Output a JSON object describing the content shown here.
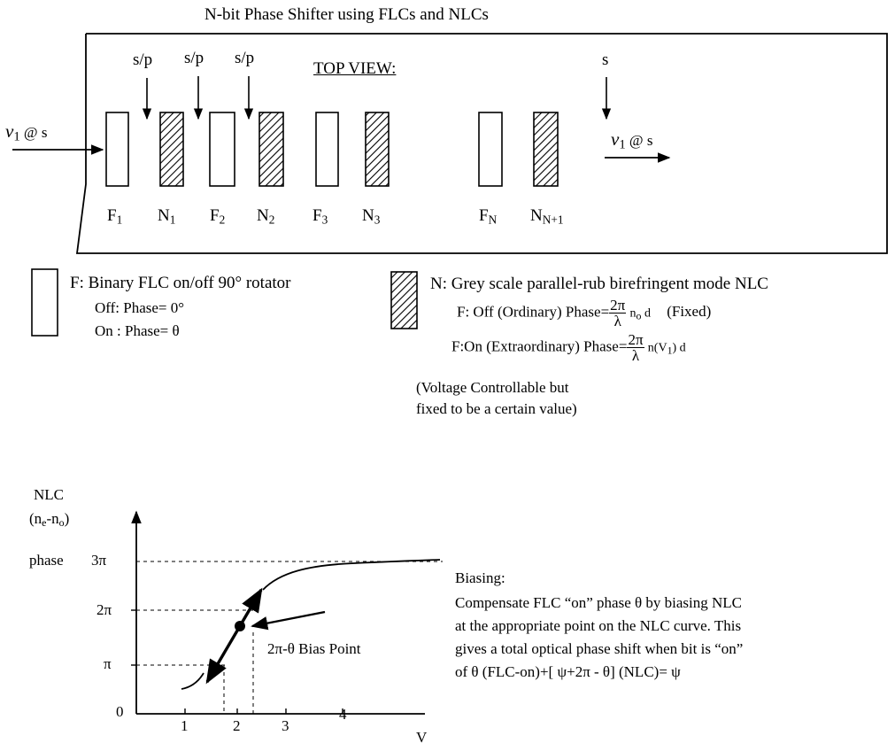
{
  "title": "N-bit Phase Shifter using FLCs and NLCs",
  "top_view": {
    "label": "TOP VIEW:",
    "input_label": {
      "v": "v",
      "sub": "1",
      "rest": " @ s"
    },
    "output_label": {
      "v": "v",
      "sub": "1",
      "rest": " @ s"
    },
    "arrow_labels": [
      "s/p",
      "s/p",
      "s/p",
      "s"
    ],
    "elements": [
      {
        "base": "F",
        "sub": "1"
      },
      {
        "base": "N",
        "sub": "1"
      },
      {
        "base": "F",
        "sub": "2"
      },
      {
        "base": "N",
        "sub": "2"
      },
      {
        "base": "F",
        "sub": "3"
      },
      {
        "base": "N",
        "sub": "3"
      },
      {
        "base": "F",
        "sub": "N"
      },
      {
        "base": "N",
        "sub": "N+1"
      }
    ]
  },
  "legend": {
    "flc": {
      "title": "F: Binary FLC on/off 90° rotator",
      "off": "Off: Phase= 0°",
      "on": "On : Phase= θ"
    },
    "nlc": {
      "title": "N: Grey scale parallel-rub birefringent mode NLC",
      "off_prefix": "F: Off (Ordinary) Phase=",
      "off_num": "2π",
      "off_den": "λ",
      "off_suffix_n": "n",
      "off_suffix_sub": "o",
      "off_suffix_rest": " d",
      "off_note": "(Fixed)",
      "on_prefix": "F:On (Extraordinary) Phase=",
      "on_num": "2π",
      "on_den": "λ",
      "on_suffix_a": "n(V",
      "on_suffix_sub": "1",
      "on_suffix_b": ") d"
    },
    "voltage_note_1": "(Voltage Controllable but",
    "voltage_note_2": "fixed to be a certain value)"
  },
  "graph": {
    "ylabel_1": "NLC",
    "ylabel_2a": "(n",
    "ylabel_2_sub_e": "e",
    "ylabel_2b": "-n",
    "ylabel_2_sub_o": "o",
    "ylabel_2c": ")",
    "ylabel_3": "phase",
    "y_ticks": [
      "3π",
      "2π",
      "π",
      "0"
    ],
    "x_ticks": [
      "1",
      "2",
      "3",
      "4"
    ],
    "xlabel": "V",
    "bias_label": "2π-θ Bias Point"
  },
  "biasing": {
    "title": "Biasing:",
    "line1": "Compensate FLC “on” phase θ by  biasing NLC",
    "line2": "at the appropriate point on the NLC curve. This",
    "line3": "gives a total optical phase shift when bit is “on”",
    "line4": "of  θ (FLC-on)+[  ψ+2π - θ] (NLC)= ψ"
  }
}
